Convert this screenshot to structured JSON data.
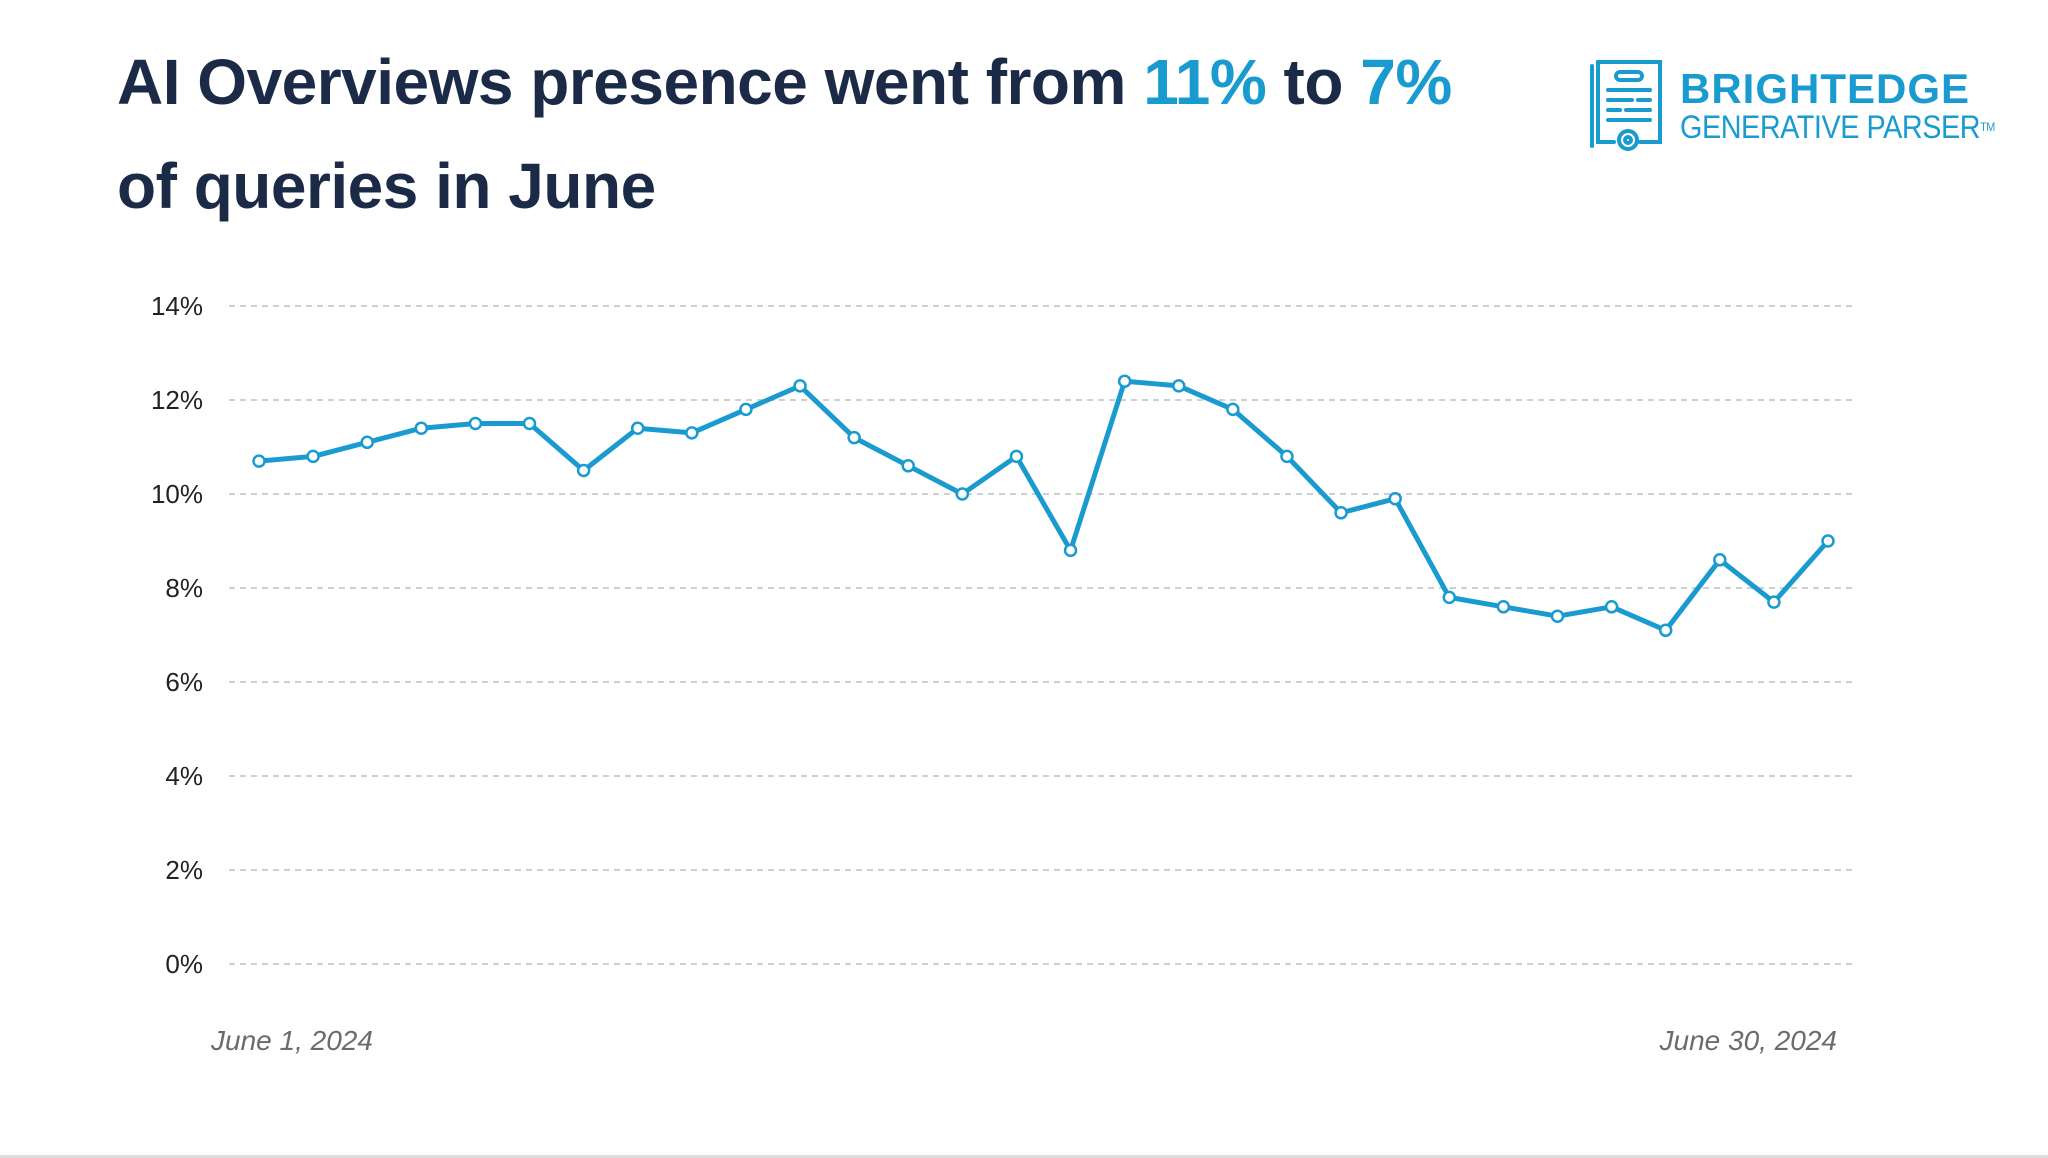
{
  "header": {
    "title_part1": "AI Overviews presence went from ",
    "title_from": "11%",
    "title_part2": " to ",
    "title_to": "7%",
    "title_part3": " of queries in June"
  },
  "logo": {
    "brand": "BRIGHTEDGE",
    "product": "GENERATIVE PARSER",
    "tm": "TM",
    "icon": "certificate-document-icon"
  },
  "colors": {
    "accent": "#1a9bd0",
    "title": "#1b2a47",
    "grid": "#cccccc"
  },
  "chart_data": {
    "type": "line",
    "title": "AI Overviews presence went from 11% to 7% of queries in June",
    "xlabel": "",
    "ylabel": "",
    "x_start_label": "June 1, 2024",
    "x_end_label": "June 30, 2024",
    "x": [
      "2024-06-01",
      "2024-06-02",
      "2024-06-03",
      "2024-06-04",
      "2024-06-05",
      "2024-06-06",
      "2024-06-07",
      "2024-06-08",
      "2024-06-09",
      "2024-06-10",
      "2024-06-11",
      "2024-06-12",
      "2024-06-13",
      "2024-06-14",
      "2024-06-15",
      "2024-06-16",
      "2024-06-17",
      "2024-06-18",
      "2024-06-19",
      "2024-06-20",
      "2024-06-21",
      "2024-06-22",
      "2024-06-23",
      "2024-06-24",
      "2024-06-25",
      "2024-06-26",
      "2024-06-27",
      "2024-06-28",
      "2024-06-29",
      "2024-06-30"
    ],
    "values": [
      10.7,
      10.8,
      11.1,
      11.4,
      11.5,
      11.5,
      10.5,
      11.4,
      11.3,
      11.8,
      12.3,
      11.2,
      10.6,
      10.0,
      10.8,
      8.8,
      12.4,
      12.3,
      11.8,
      10.8,
      9.6,
      9.9,
      7.8,
      7.6,
      7.4,
      7.6,
      7.1,
      8.6,
      7.7,
      9.0
    ],
    "ylim": [
      0,
      14
    ],
    "yticks": [
      0,
      2,
      4,
      6,
      8,
      10,
      12,
      14
    ],
    "ytick_labels": [
      "0%",
      "2%",
      "4%",
      "6%",
      "8%",
      "10%",
      "12%",
      "14%"
    ],
    "grid": "horizontal dashed",
    "markers": "hollow circles",
    "line_color": "#1a9bd0"
  }
}
